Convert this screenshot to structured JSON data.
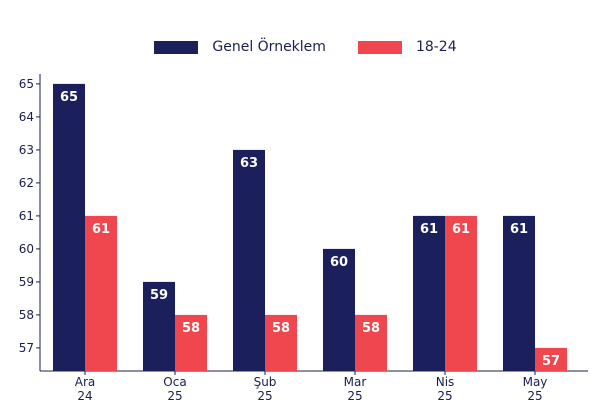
{
  "chart_data": {
    "type": "bar",
    "title": "",
    "xlabel": "",
    "ylabel": "",
    "categories": [
      [
        "Ara",
        "24"
      ],
      [
        "Oca",
        "25"
      ],
      [
        "Şub",
        "25"
      ],
      [
        "Mar",
        "25"
      ],
      [
        "Nis",
        "25"
      ],
      [
        "May",
        "25"
      ]
    ],
    "series": [
      {
        "name": "Genel Örneklem",
        "color": "#1b1f5c",
        "values": [
          65,
          59,
          63,
          60,
          61,
          61
        ]
      },
      {
        "name": "18-24",
        "color": "#f0474f",
        "values": [
          61,
          58,
          58,
          58,
          61,
          57
        ]
      }
    ],
    "yticks": [
      57,
      58,
      59,
      60,
      61,
      62,
      63,
      64,
      65
    ],
    "ylim": [
      56.3,
      65.3
    ],
    "legend_position": "top-center",
    "grid": false
  }
}
